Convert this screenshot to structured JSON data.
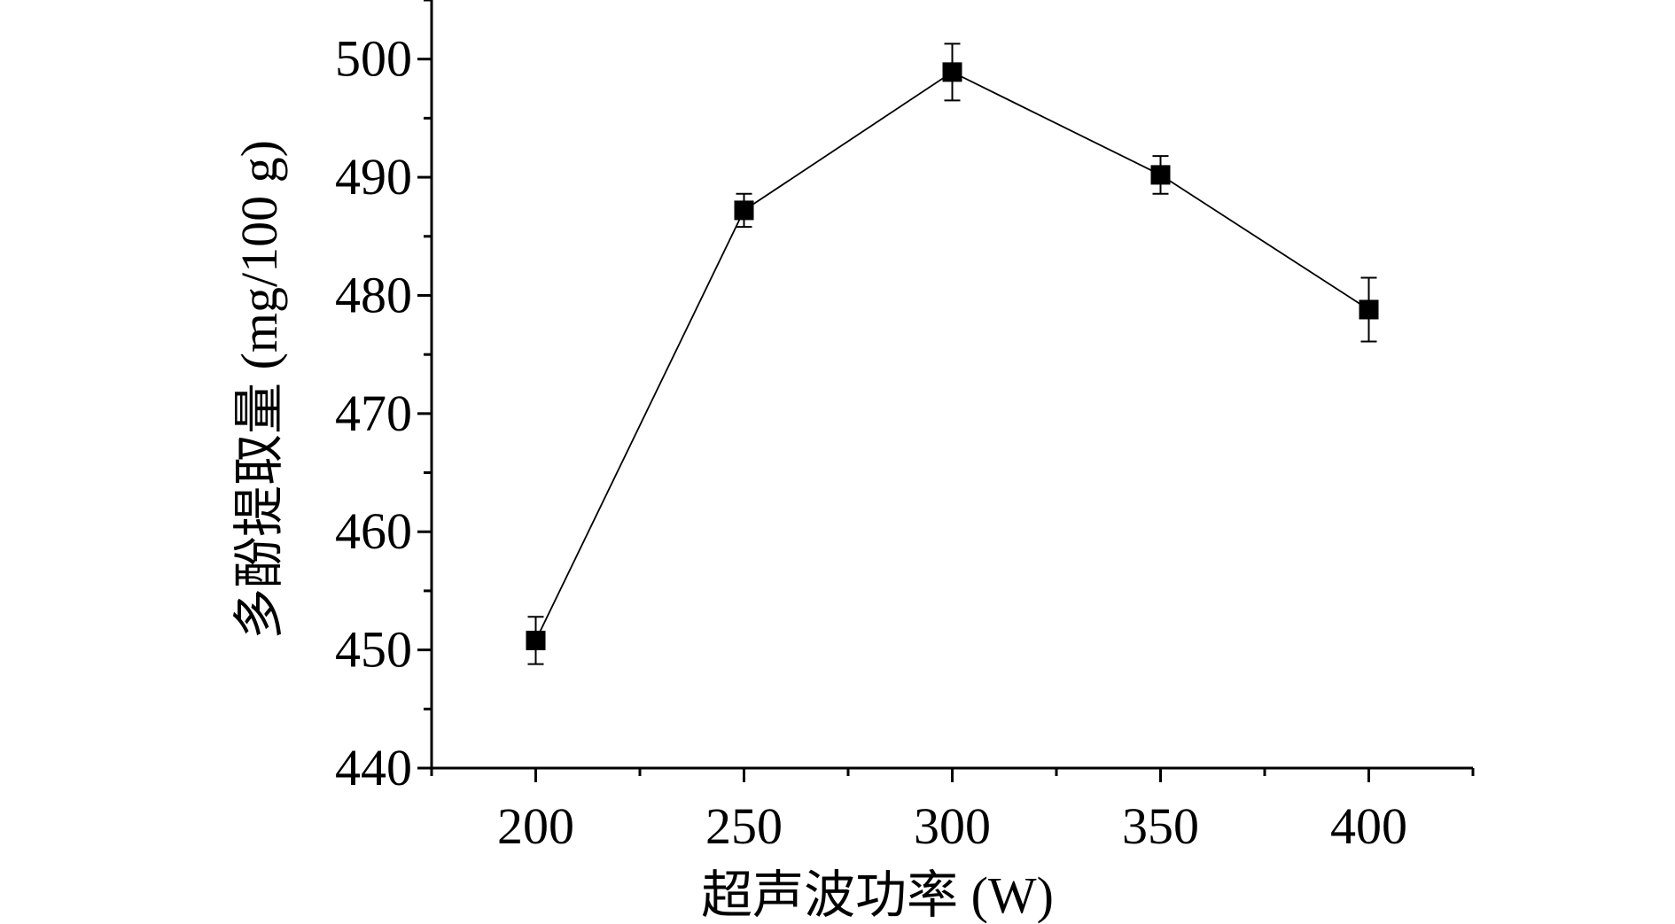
{
  "chart_data": {
    "type": "line",
    "title": "",
    "xlabel": "超声波功率 (W)",
    "ylabel": "多酚提取量 (mg/100 g)",
    "x": [
      200,
      250,
      300,
      350,
      400
    ],
    "series": [
      {
        "name": "",
        "values": [
          450.8,
          487.2,
          498.9,
          490.2,
          478.8
        ],
        "errors": [
          2.0,
          1.4,
          2.4,
          1.6,
          2.7
        ]
      }
    ],
    "xlim": [
      175,
      425
    ],
    "ylim": [
      440,
      505
    ],
    "xticks": [
      200,
      250,
      300,
      350,
      400
    ],
    "xtick_labels": [
      "200",
      "250",
      "300",
      "350",
      "400"
    ],
    "yticks": [
      440,
      450,
      460,
      470,
      480,
      490,
      500
    ],
    "ytick_labels": [
      "440",
      "450",
      "460",
      "470",
      "480",
      "490",
      "500"
    ],
    "grid": false,
    "legend": "none",
    "marker": "square",
    "color": "#000000"
  }
}
